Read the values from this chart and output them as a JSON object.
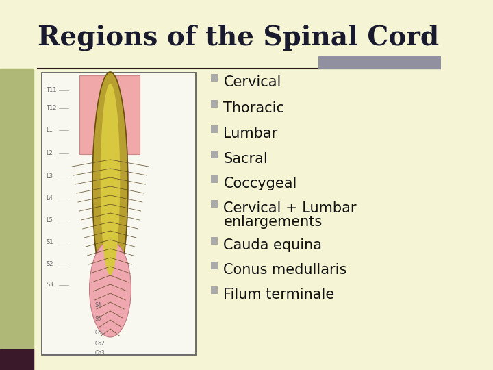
{
  "title": "Regions of the Spinal Cord",
  "title_fontsize": 28,
  "title_color": "#1a1a2e",
  "title_font": "serif",
  "background_color": "#f5f5d5",
  "left_bar_color": "#8a8a6a",
  "top_bar_color": "#9a9a8a",
  "bullet_color": "#909090",
  "bullet_char": "n",
  "text_color": "#111111",
  "text_fontsize": 15,
  "items": [
    "Cervical",
    "Thoracic",
    "Lumbar",
    "Sacral",
    "Coccygeal",
    "Cervical + Lumbar\nenlargements",
    "Cauda equina",
    "Conus medullaris",
    "Filum terminale"
  ],
  "line_color": "#2a1a1a",
  "line_width": 1.5,
  "img_box_edge": "#555555",
  "img_box_face": "#f0f0e0"
}
